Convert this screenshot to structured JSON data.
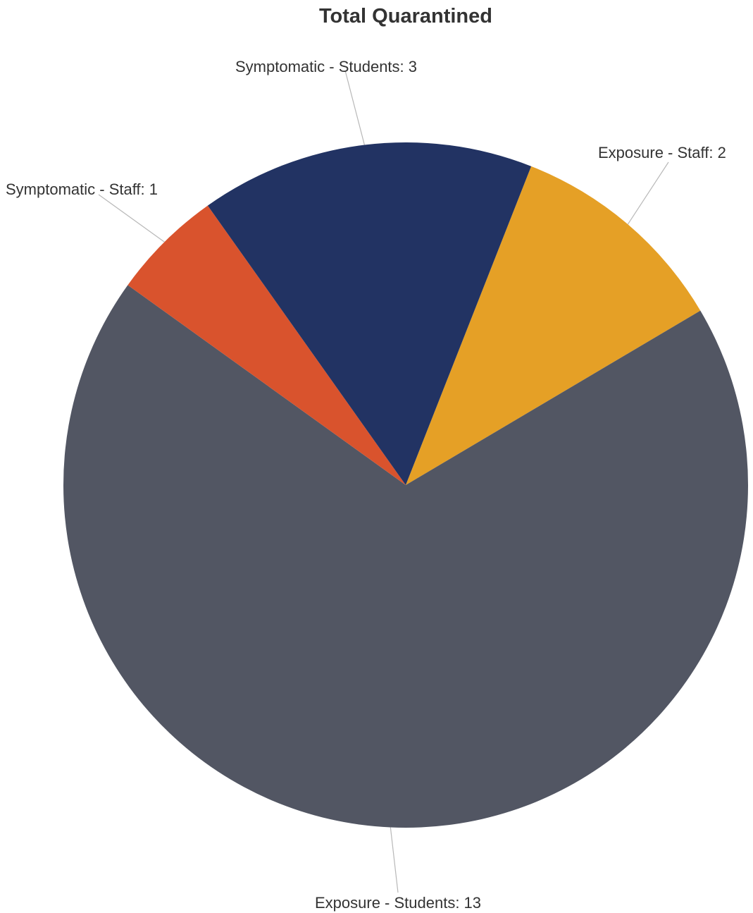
{
  "chart_data": {
    "type": "pie",
    "title": "Total Quarantined",
    "slices": [
      {
        "label": "Exposure - Staff",
        "value": 2,
        "color": "#e5a026"
      },
      {
        "label": "Exposure - Students",
        "value": 13,
        "color": "#525663"
      },
      {
        "label": "Symptomatic - Staff",
        "value": 1,
        "color": "#d9532d"
      },
      {
        "label": "Symptomatic - Students",
        "value": 3,
        "color": "#223363"
      }
    ],
    "data_labels": [
      "Exposure - Staff: 2",
      "Exposure - Students: 13",
      "Symptomatic - Staff: 1",
      "Symptomatic - Students: 3"
    ],
    "legend": "none"
  }
}
